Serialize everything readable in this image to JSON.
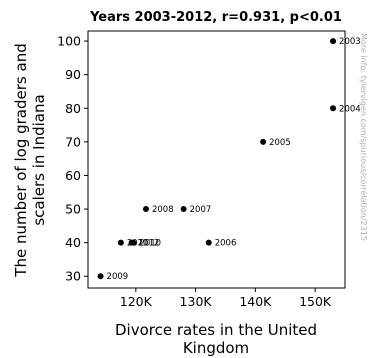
{
  "chart_data": {
    "type": "scatter",
    "title": "Years 2003-2012, r=0.931, p<0.01",
    "xlabel": [
      "Divorce rates in the United",
      "Kingdom"
    ],
    "ylabel": [
      "The number of log graders and",
      "scalers in Indiana"
    ],
    "xlim": [
      112000,
      155000
    ],
    "ylim": [
      26.5,
      103
    ],
    "xticks": [
      120000,
      130000,
      140000,
      150000
    ],
    "xtick_labels": [
      "120K",
      "130K",
      "140K",
      "150K"
    ],
    "yticks": [
      30,
      40,
      50,
      60,
      70,
      80,
      90,
      100
    ],
    "ytick_labels": [
      "30",
      "40",
      "50",
      "60",
      "70",
      "80",
      "90",
      "100"
    ],
    "grid": false,
    "points": [
      {
        "label": "2003",
        "x": 153000,
        "y": 100
      },
      {
        "label": "2004",
        "x": 153000,
        "y": 80
      },
      {
        "label": "2005",
        "x": 141300,
        "y": 70
      },
      {
        "label": "2006",
        "x": 132200,
        "y": 40
      },
      {
        "label": "2007",
        "x": 128000,
        "y": 50
      },
      {
        "label": "2008",
        "x": 121700,
        "y": 50
      },
      {
        "label": "2009",
        "x": 114100,
        "y": 30
      },
      {
        "label": "2010",
        "x": 119600,
        "y": 40
      },
      {
        "label": "2011",
        "x": 117500,
        "y": 40
      },
      {
        "label": "2012",
        "x": 119300,
        "y": 40
      }
    ],
    "point_color": "#000000",
    "watermark": "More info: tylervigen.com/spurious/correlation/2315"
  }
}
